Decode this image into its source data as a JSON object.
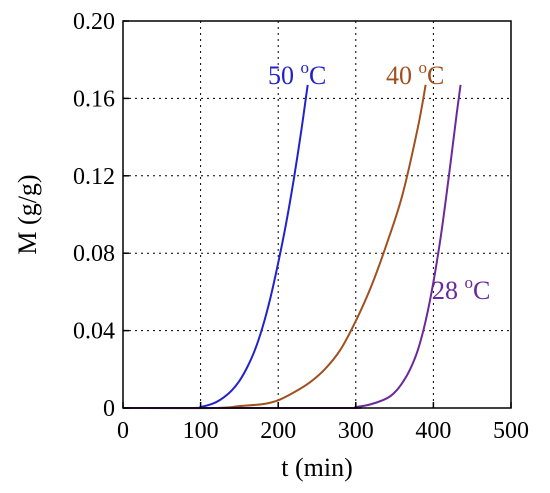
{
  "chart_data": {
    "type": "line",
    "xlabel": "t (min)",
    "ylabel": "M (g/g)",
    "xlim": [
      0,
      500
    ],
    "ylim": [
      0,
      0.2
    ],
    "xticks": [
      0,
      100,
      200,
      300,
      400,
      500
    ],
    "yticks": [
      0,
      0.04,
      0.08,
      0.12,
      0.16,
      0.2
    ],
    "xtick_labels": [
      "0",
      "100",
      "200",
      "300",
      "400",
      "500"
    ],
    "ytick_labels": [
      "0",
      "0.04",
      "0.08",
      "0.12",
      "0.16",
      "0.20"
    ],
    "grid": true,
    "series": [
      {
        "label_main": "50 ",
        "label_sup": "o",
        "label_unit": "C",
        "color": "#2222cc",
        "x": [
          0,
          90,
          100,
          110,
          120,
          130,
          140,
          150,
          160,
          170,
          180,
          190,
          200,
          210,
          220,
          230,
          238
        ],
        "y": [
          0,
          0,
          0.0005,
          0.0015,
          0.003,
          0.0055,
          0.009,
          0.014,
          0.021,
          0.03,
          0.042,
          0.057,
          0.075,
          0.095,
          0.118,
          0.144,
          0.167
        ]
      },
      {
        "label_main": "40 ",
        "label_sup": "o",
        "label_unit": "C",
        "color": "#a0501e",
        "x": [
          0,
          120,
          150,
          180,
          200,
          220,
          240,
          260,
          280,
          300,
          320,
          340,
          360,
          380,
          390
        ],
        "y": [
          0,
          0,
          0.001,
          0.002,
          0.004,
          0.008,
          0.013,
          0.02,
          0.03,
          0.045,
          0.063,
          0.085,
          0.11,
          0.145,
          0.167
        ]
      },
      {
        "label_main": "28 ",
        "label_sup": "o",
        "label_unit": "C",
        "color": "#6a2a9a",
        "x": [
          0,
          280,
          300,
          320,
          340,
          350,
          360,
          370,
          380,
          390,
          400,
          410,
          420,
          430,
          435
        ],
        "y": [
          0,
          0,
          0.0005,
          0.002,
          0.005,
          0.008,
          0.013,
          0.02,
          0.03,
          0.045,
          0.065,
          0.09,
          0.12,
          0.152,
          0.167
        ]
      }
    ]
  }
}
